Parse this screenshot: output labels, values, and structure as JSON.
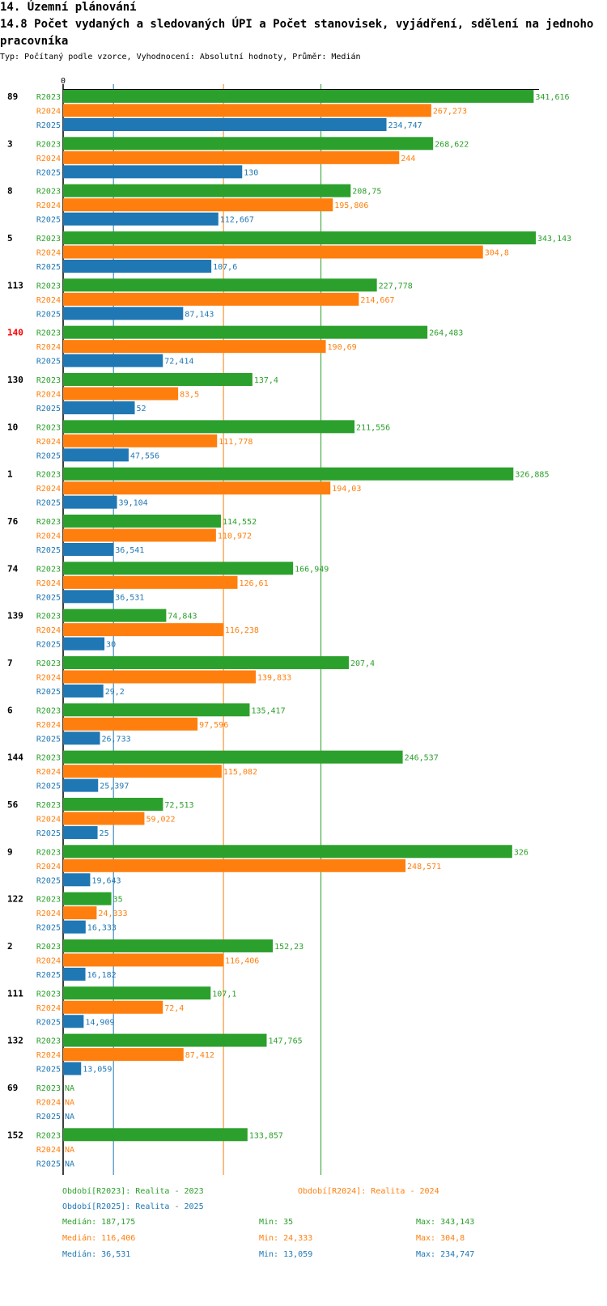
{
  "header": {
    "title": "14. Územní plánování",
    "subtitle": "14.8 Počet vydaných a sledovaných ÚPI a Počet stanovisek, vyjádření, sdělení na jednoho pracovníka",
    "type_line": "Typ: Počítaný podle vzorce, Vyhodnocení: Absolutní hodnoty, Průměr: Medián"
  },
  "colors": {
    "R2023": "#2ca02c",
    "R2024": "#ff7f0e",
    "R2025": "#1f77b4",
    "highlight": "#ff0000"
  },
  "chart_data": {
    "type": "bar",
    "orientation": "horizontal",
    "axis_zero_label": "0",
    "xlim": [
      0,
      343.143
    ],
    "series_names": [
      "R2023",
      "R2024",
      "R2025"
    ],
    "highlighted_category": "140",
    "reference_lines": [
      {
        "series": "R2023",
        "value": 187.175
      },
      {
        "series": "R2024",
        "value": 116.406
      },
      {
        "series": "R2025",
        "value": 36.531
      }
    ],
    "groups": [
      {
        "id": "89",
        "values": [
          341.616,
          267.273,
          234.747
        ],
        "labels": [
          "341,616",
          "267,273",
          "234,747"
        ]
      },
      {
        "id": "3",
        "values": [
          268.622,
          244,
          130
        ],
        "labels": [
          "268,622",
          "244",
          "130"
        ]
      },
      {
        "id": "8",
        "values": [
          208.75,
          195.806,
          112.667
        ],
        "labels": [
          "208,75",
          "195,806",
          "112,667"
        ]
      },
      {
        "id": "5",
        "values": [
          343.143,
          304.8,
          107.6
        ],
        "labels": [
          "343,143",
          "304,8",
          "107,6"
        ]
      },
      {
        "id": "113",
        "values": [
          227.778,
          214.667,
          87.143
        ],
        "labels": [
          "227,778",
          "214,667",
          "87,143"
        ]
      },
      {
        "id": "140",
        "values": [
          264.483,
          190.69,
          72.414
        ],
        "labels": [
          "264,483",
          "190,69",
          "72,414"
        ]
      },
      {
        "id": "130",
        "values": [
          137.4,
          83.5,
          52
        ],
        "labels": [
          "137,4",
          "83,5",
          "52"
        ]
      },
      {
        "id": "10",
        "values": [
          211.556,
          111.778,
          47.556
        ],
        "labels": [
          "211,556",
          "111,778",
          "47,556"
        ]
      },
      {
        "id": "1",
        "values": [
          326.885,
          194.03,
          39.104
        ],
        "labels": [
          "326,885",
          "194,03",
          "39,104"
        ]
      },
      {
        "id": "76",
        "values": [
          114.552,
          110.972,
          36.541
        ],
        "labels": [
          "114,552",
          "110,972",
          "36,541"
        ]
      },
      {
        "id": "74",
        "values": [
          166.949,
          126.61,
          36.531
        ],
        "labels": [
          "166,949",
          "126,61",
          "36,531"
        ]
      },
      {
        "id": "139",
        "values": [
          74.843,
          116.238,
          30
        ],
        "labels": [
          "74,843",
          "116,238",
          "30"
        ]
      },
      {
        "id": "7",
        "values": [
          207.4,
          139.833,
          29.2
        ],
        "labels": [
          "207,4",
          "139,833",
          "29,2"
        ]
      },
      {
        "id": "6",
        "values": [
          135.417,
          97.596,
          26.733
        ],
        "labels": [
          "135,417",
          "97,596",
          "26,733"
        ]
      },
      {
        "id": "144",
        "values": [
          246.537,
          115.082,
          25.397
        ],
        "labels": [
          "246,537",
          "115,082",
          "25,397"
        ]
      },
      {
        "id": "56",
        "values": [
          72.513,
          59.022,
          25
        ],
        "labels": [
          "72,513",
          "59,022",
          "25"
        ]
      },
      {
        "id": "9",
        "values": [
          326,
          248.571,
          19.643
        ],
        "labels": [
          "326",
          "248,571",
          "19,643"
        ]
      },
      {
        "id": "122",
        "values": [
          35,
          24.333,
          16.333
        ],
        "labels": [
          "35",
          "24,333",
          "16,333"
        ]
      },
      {
        "id": "2",
        "values": [
          152.23,
          116.406,
          16.182
        ],
        "labels": [
          "152,23",
          "116,406",
          "16,182"
        ]
      },
      {
        "id": "111",
        "values": [
          107.1,
          72.4,
          14.909
        ],
        "labels": [
          "107,1",
          "72,4",
          "14,909"
        ]
      },
      {
        "id": "132",
        "values": [
          147.765,
          87.412,
          13.059
        ],
        "labels": [
          "147,765",
          "87,412",
          "13,059"
        ]
      },
      {
        "id": "69",
        "values": [
          null,
          null,
          null
        ],
        "labels": [
          "NA",
          "NA",
          "NA"
        ]
      },
      {
        "id": "152",
        "values": [
          133.857,
          null,
          null
        ],
        "labels": [
          "133,857",
          "NA",
          "NA"
        ]
      }
    ]
  },
  "legend": {
    "r2023_period": "Období[R2023]: Realita - 2023",
    "r2024_period": "Období[R2024]: Realita - 2024",
    "r2025_period": "Období[R2025]: Realita - 2025",
    "r2023_median": "Medián: 187,175",
    "r2023_min": "Min: 35",
    "r2023_max": "Max: 343,143",
    "r2024_median": "Medián: 116,406",
    "r2024_min": "Min: 24,333",
    "r2024_max": "Max: 304,8",
    "r2025_median": "Medián: 36,531",
    "r2025_min": "Min: 13,059",
    "r2025_max": "Max: 234,747"
  }
}
